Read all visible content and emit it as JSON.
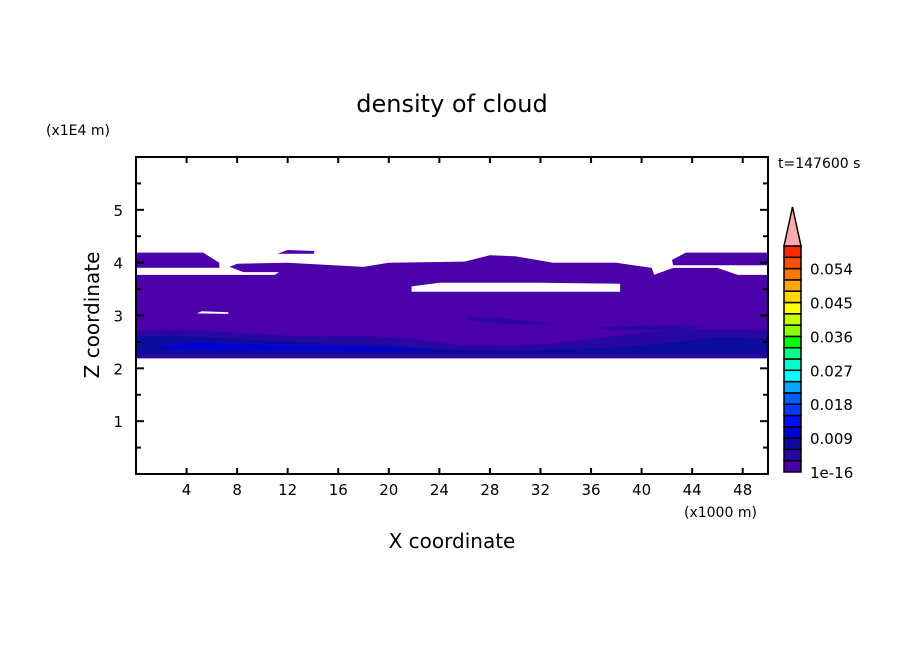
{
  "chart_data": {
    "type": "contour",
    "title": "density of cloud",
    "xlabel": "X coordinate",
    "ylabel": "Z coordinate",
    "x_unit": "(x1000 m)",
    "y_unit": "(x1E4 m)",
    "time_label": "t=147600 s",
    "xlim": [
      0,
      50
    ],
    "ylim": [
      0,
      6
    ],
    "x_ticks": [
      4,
      8,
      12,
      16,
      20,
      24,
      28,
      32,
      36,
      40,
      44,
      48
    ],
    "y_ticks": [
      1,
      2,
      3,
      4,
      5
    ],
    "grid": false,
    "colorbar": {
      "position": "right",
      "levels": [
        1e-16,
        0.003,
        0.006,
        0.009,
        0.012,
        0.015,
        0.018,
        0.021,
        0.024,
        0.027,
        0.03,
        0.033,
        0.036,
        0.039,
        0.042,
        0.045,
        0.048,
        0.051,
        0.054,
        0.057,
        0.06
      ],
      "tick_labels": [
        {
          "level_index": 0,
          "label": "1e-16"
        },
        {
          "level_index": 3,
          "label": "0.009"
        },
        {
          "level_index": 6,
          "label": "0.018"
        },
        {
          "level_index": 9,
          "label": "0.027"
        },
        {
          "level_index": 12,
          "label": "0.036"
        },
        {
          "level_index": 15,
          "label": "0.045"
        },
        {
          "level_index": 18,
          "label": "0.054"
        }
      ],
      "colors": [
        "#4b00a8",
        "#2808a0",
        "#0c0c9c",
        "#0000d8",
        "#0010ff",
        "#0038ff",
        "#0060ff",
        "#00a8ff",
        "#00ffff",
        "#00ffd0",
        "#00ff88",
        "#00ff00",
        "#88ff00",
        "#c8ff00",
        "#ffff00",
        "#ffd800",
        "#ffa800",
        "#ff7800",
        "#ff5000",
        "#ff2800",
        "#ff2828"
      ],
      "overflow_color": "#ffaaaa"
    },
    "regions": [
      {
        "level": 0,
        "points": [
          [
            0,
            2.19
          ],
          [
            50,
            2.19
          ],
          [
            50,
            3.77
          ],
          [
            47.6,
            3.77
          ],
          [
            46,
            3.9
          ],
          [
            42.5,
            3.9
          ],
          [
            41,
            3.77
          ],
          [
            40.8,
            3.9
          ],
          [
            38,
            4.0
          ],
          [
            33,
            4.0
          ],
          [
            30,
            4.12
          ],
          [
            28,
            4.14
          ],
          [
            26,
            4.02
          ],
          [
            20,
            4.0
          ],
          [
            18,
            3.92
          ],
          [
            12,
            4.0
          ],
          [
            8,
            3.98
          ],
          [
            7.4,
            3.92
          ],
          [
            8.5,
            3.82
          ],
          [
            11.3,
            3.82
          ],
          [
            11,
            3.77
          ],
          [
            0,
            3.77
          ]
        ]
      },
      {
        "level": 0,
        "points": [
          [
            0,
            3.9
          ],
          [
            6.6,
            3.9
          ],
          [
            6.6,
            4.0
          ],
          [
            5.3,
            4.19
          ],
          [
            0,
            4.19
          ]
        ]
      },
      {
        "level": 0,
        "points": [
          [
            42.5,
            3.95
          ],
          [
            50,
            3.95
          ],
          [
            50,
            4.19
          ],
          [
            43.5,
            4.19
          ],
          [
            42.4,
            4.05
          ]
        ]
      },
      {
        "level": 0,
        "points": [
          [
            11.2,
            4.17
          ],
          [
            12,
            4.24
          ],
          [
            14.1,
            4.22
          ],
          [
            14.1,
            4.17
          ]
        ]
      },
      {
        "level": 1,
        "points": [
          [
            0,
            2.19
          ],
          [
            50,
            2.19
          ],
          [
            50,
            2.72
          ],
          [
            44,
            2.75
          ],
          [
            40,
            2.68
          ],
          [
            36,
            2.55
          ],
          [
            32,
            2.45
          ],
          [
            26,
            2.42
          ],
          [
            22,
            2.55
          ],
          [
            18,
            2.62
          ],
          [
            12,
            2.62
          ],
          [
            6,
            2.7
          ],
          [
            3,
            2.72
          ],
          [
            0,
            2.7
          ]
        ]
      },
      {
        "level": 2,
        "points": [
          [
            0,
            2.28
          ],
          [
            50,
            2.28
          ],
          [
            50,
            2.55
          ],
          [
            46,
            2.6
          ],
          [
            43,
            2.5
          ],
          [
            38,
            2.4
          ],
          [
            30,
            2.32
          ],
          [
            24,
            2.36
          ],
          [
            20,
            2.44
          ],
          [
            16,
            2.46
          ],
          [
            12,
            2.5
          ],
          [
            6,
            2.58
          ],
          [
            2,
            2.62
          ],
          [
            0,
            2.6
          ]
        ]
      },
      {
        "level": 3,
        "points": [
          [
            2,
            2.36
          ],
          [
            18,
            2.33
          ],
          [
            24,
            2.34
          ],
          [
            20,
            2.4
          ],
          [
            12,
            2.44
          ],
          [
            5,
            2.48
          ],
          [
            2,
            2.42
          ]
        ]
      },
      {
        "level": 1,
        "points": [
          [
            26.2,
            2.97
          ],
          [
            29,
            2.95
          ],
          [
            31.5,
            2.88
          ],
          [
            33,
            2.84
          ],
          [
            31,
            2.82
          ],
          [
            28,
            2.86
          ],
          [
            26.2,
            2.92
          ]
        ]
      },
      {
        "level": 1,
        "points": [
          [
            36.5,
            2.78
          ],
          [
            40,
            2.8
          ],
          [
            43.5,
            2.83
          ],
          [
            44.8,
            2.78
          ],
          [
            42,
            2.72
          ],
          [
            38,
            2.72
          ],
          [
            36.5,
            2.76
          ]
        ]
      }
    ],
    "white_holes": [
      [
        [
          0,
          3.77
        ],
        [
          11,
          3.77
        ],
        [
          11.3,
          3.82
        ],
        [
          8.5,
          3.82
        ],
        [
          7.4,
          3.92
        ],
        [
          6.6,
          3.9
        ],
        [
          0,
          3.9
        ]
      ],
      [
        [
          21.8,
          3.45
        ],
        [
          38.3,
          3.45
        ],
        [
          38.3,
          3.6
        ],
        [
          32,
          3.62
        ],
        [
          24,
          3.62
        ],
        [
          21.8,
          3.55
        ]
      ],
      [
        [
          4.8,
          3.04
        ],
        [
          7.3,
          3.03
        ],
        [
          7.3,
          3.06
        ],
        [
          5.2,
          3.08
        ]
      ],
      [
        [
          47.6,
          3.77
        ],
        [
          50,
          3.77
        ],
        [
          50,
          3.9
        ],
        [
          46,
          3.9
        ]
      ]
    ]
  }
}
